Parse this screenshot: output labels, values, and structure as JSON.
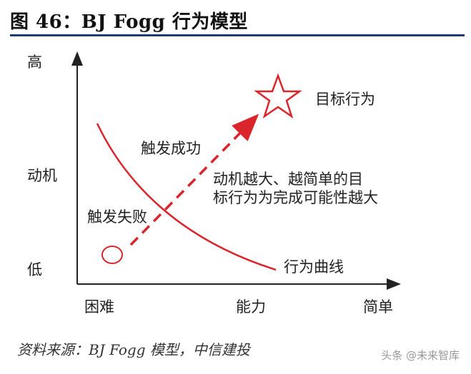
{
  "title": "图 46：BJ Fogg 行为模型",
  "y_axis": {
    "high": "高",
    "label": "动机",
    "low": "低"
  },
  "x_axis": {
    "hard": "困难",
    "label": "能力",
    "easy": "简单"
  },
  "labels": {
    "success": "触发成功",
    "fail": "触发失败",
    "target": "目标行为",
    "curve": "行为曲线",
    "annotation_line1": "动机越大、越简单的目",
    "annotation_line2": "标行为为完成可能性越大"
  },
  "source": "资料来源：BJ Fogg 模型，中信建投",
  "watermark": "头条 @未来智库",
  "colors": {
    "accent_red": "#d9252b",
    "title_rule": "#1f3a73",
    "axis": "#222222"
  }
}
